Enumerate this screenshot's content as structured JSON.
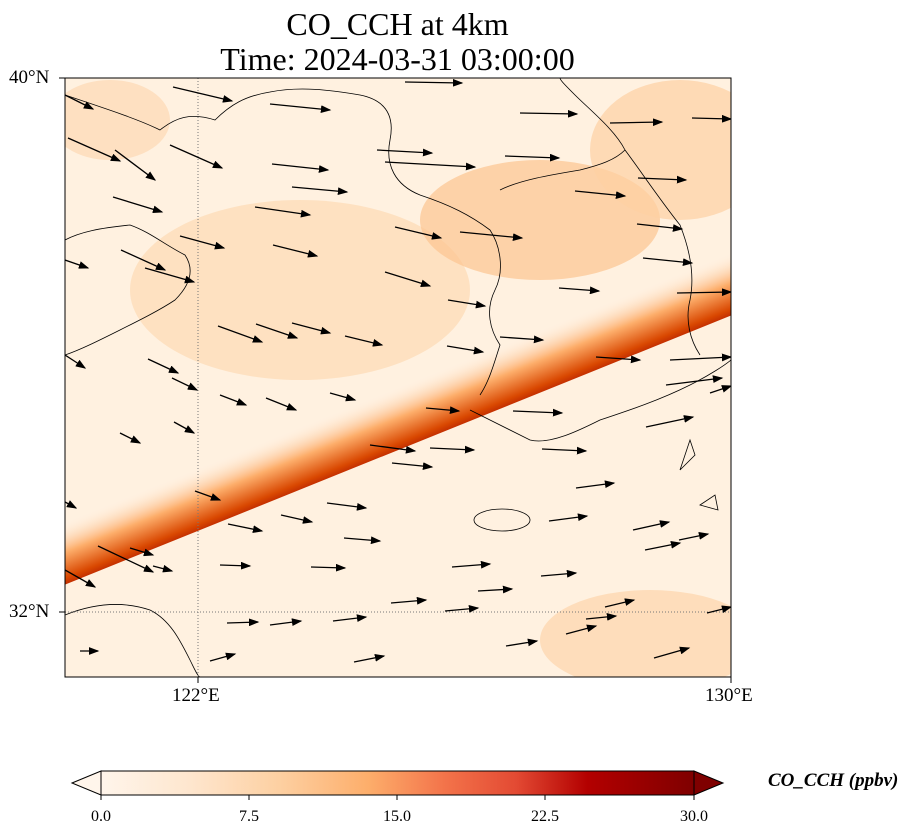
{
  "title": {
    "line1": "CO_CCH at 4km",
    "line2": "Time: 2024-03-31 03:00:00"
  },
  "map": {
    "extent": {
      "lon": [
        120,
        130
      ],
      "lat": [
        31,
        40
      ]
    },
    "lat_ticks": [
      {
        "value": 40,
        "label": "40°N"
      },
      {
        "value": 32,
        "label": "32°N"
      }
    ],
    "lon_ticks": [
      {
        "value": 122,
        "label": "122°E"
      },
      {
        "value": 130,
        "label": "130°E"
      }
    ],
    "gridlines": {
      "style": "dotted",
      "color": "#777777"
    },
    "field": "CO_CCH",
    "vectors": "wind",
    "band_description": "high CO plume band from southwest to northeast"
  },
  "colorbar": {
    "title": "CO_CCH (ppbv)",
    "range": [
      0,
      30
    ],
    "tick_labels": [
      "0.0",
      "7.5",
      "15.0",
      "22.5",
      "30.0"
    ],
    "extend": "both",
    "colors": [
      "#fff5eb",
      "#fee6ce",
      "#fdd0a2",
      "#fdae6b",
      "#fd8d3c",
      "#f16913",
      "#d94801",
      "#b30000",
      "#7f0000"
    ]
  }
}
